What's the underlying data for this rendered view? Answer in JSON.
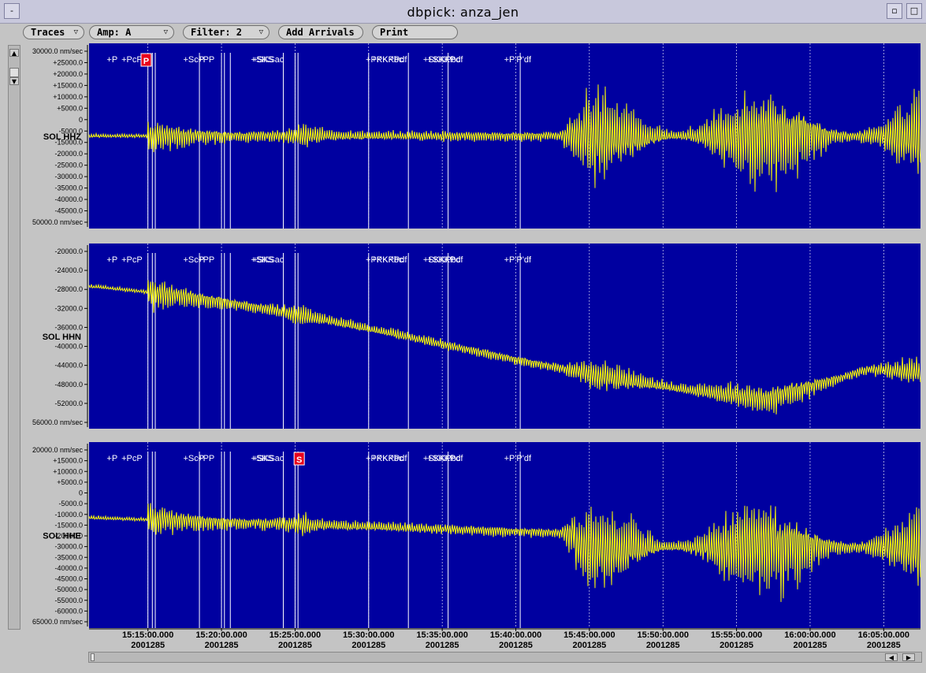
{
  "window": {
    "title": "dbpick: anza_jen",
    "menu_glyph": "-",
    "min_glyph": "▫",
    "max_glyph": "□"
  },
  "toolbar": {
    "traces": "Traces",
    "amp": "Amp: A",
    "filter": "Filter: 2",
    "add_arrivals": "Add Arrivals",
    "print": "Print",
    "dropdown_glyph": "▽"
  },
  "colors": {
    "plot_bg": "#0000a0",
    "trace": "#ffff00",
    "marker": "#ffffff",
    "pick": "#e8001c",
    "label_bg": "#ffffff"
  },
  "icons": {
    "scroll_up": "up-arrow-icon",
    "scroll_down": "down-arrow-icon",
    "scroll_left": "left-arrow-icon",
    "scroll_right": "right-arrow-icon"
  },
  "scroll_glyphs": {
    "up": "▲",
    "down": "▼",
    "left": "◀",
    "right": "▶"
  },
  "time_axis": {
    "date": "2001285",
    "ticks": [
      "15:15:00.000",
      "15:20:00.000",
      "15:25:00.000",
      "15:30:00.000",
      "15:35:00.000",
      "15:40:00.000",
      "15:45:00.000",
      "15:50:00.000",
      "15:55:00.000",
      "16:00:00.000",
      "16:05:00.000"
    ],
    "start_minute": 911.0,
    "end_minute": 967.5
  },
  "arrival_labels": [
    {
      "text": "+P",
      "t_minute": 912.2
    },
    {
      "text": "+PcP",
      "t_minute": 913.2
    },
    {
      "text": "+ScP",
      "t_minute": 917.4
    },
    {
      "text": "+PP",
      "t_minute": 918.4
    },
    {
      "text": "+SKS",
      "t_minute": 922.0
    },
    {
      "text": "+SKSac",
      "t_minute": 922.1
    },
    {
      "text": "+PKKPbc",
      "t_minute": 929.8
    },
    {
      "text": "+PKKPdf",
      "t_minute": 930.2
    },
    {
      "text": "+SKKPbc",
      "t_minute": 933.7
    },
    {
      "text": "+SKKPdf",
      "t_minute": 934.0
    },
    {
      "text": "+P'P'df",
      "t_minute": 939.2
    }
  ],
  "marker_lines_minutes": [
    915.0,
    915.3,
    915.5,
    918.5,
    920.0,
    920.2,
    920.6,
    924.2,
    925.0,
    925.2,
    930.0,
    932.7,
    935.4,
    940.3
  ],
  "grid_lines_minutes": [
    915,
    920,
    925,
    930,
    935,
    940,
    945,
    950,
    955,
    960,
    965
  ],
  "channels": [
    {
      "name": "SOL HHZ",
      "ticks": [
        "30000.0 nm/sec",
        "+25000.0",
        "+20000.0",
        "+15000.0",
        "+10000.0",
        "+5000.0",
        "0",
        "-5000.0",
        "-15000.0",
        "-20000.0",
        "-25000.0",
        "-30000.0",
        "-35000.0",
        "-40000.0",
        "-45000.0",
        "50000.0 nm/sec"
      ],
      "ymax": 30000,
      "ymin": -50000,
      "pick": {
        "label": "P",
        "t_minute": 914.8
      },
      "baseline": -2500
    },
    {
      "name": "SOL HHN",
      "ticks": [
        "-20000.0",
        "-24000.0",
        "-28000.0",
        "-32000.0",
        "-36000.0",
        "-40000.0",
        "-44000.0",
        "-48000.0",
        "-52000.0",
        "56000.0 nm/sec"
      ],
      "ymax": -18000,
      "ymin": -56000,
      "pick": null,
      "baseline": -28000
    },
    {
      "name": "SOL HHE",
      "ticks": [
        "20000.0 nm/sec",
        "+15000.0",
        "+10000.0",
        "+5000.0",
        "0",
        "-5000.0",
        "-10000.0",
        "-15000.0",
        "-20000.0",
        "-30000.0",
        "-35000.0",
        "-40000.0",
        "-45000.0",
        "-50000.0",
        "-55000.0",
        "-60000.0",
        "65000.0 nm/sec"
      ],
      "ymax": 20000,
      "ymin": -65000,
      "pick": {
        "label": "S",
        "t_minute": 925.2
      },
      "baseline": -6000
    }
  ]
}
